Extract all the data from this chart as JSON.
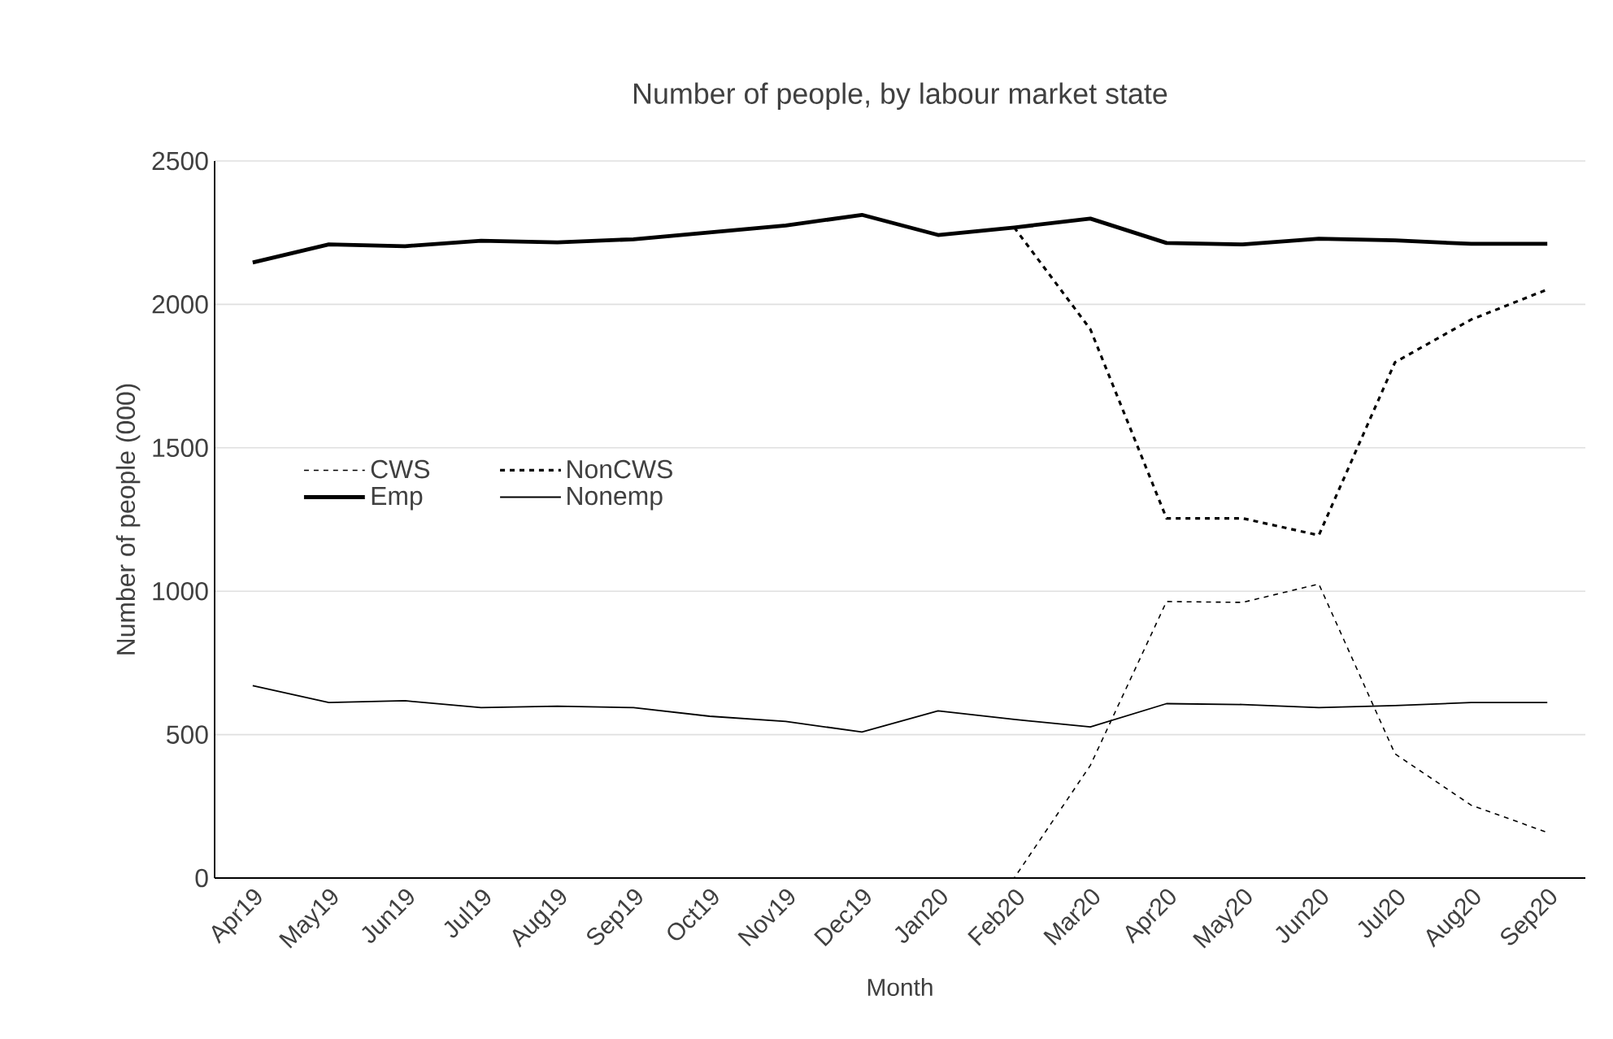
{
  "chart_data": {
    "type": "line",
    "title": "Number of people, by labour market state",
    "xlabel": "Month",
    "ylabel": "Number of people (000)",
    "categories": [
      "Apr19",
      "May19",
      "Jun19",
      "Jul19",
      "Aug19",
      "Sep19",
      "Oct19",
      "Nov19",
      "Dec19",
      "Jan20",
      "Feb20",
      "Mar20",
      "Apr20",
      "May20",
      "Jun20",
      "Jul20",
      "Aug20",
      "Sep20"
    ],
    "series": [
      {
        "name": "CWS",
        "color": "#000000",
        "line_style": "dashed",
        "values": [
          0,
          0,
          0,
          0,
          0,
          0,
          0,
          0,
          0,
          0,
          0,
          393,
          964,
          961,
          1025,
          433,
          254,
          159
        ]
      },
      {
        "name": "NonCWS",
        "color": "#000000",
        "line_style": "dashed",
        "values": [
          null,
          null,
          null,
          null,
          null,
          null,
          null,
          null,
          null,
          null,
          2268,
          1913,
          1254,
          1254,
          1195,
          1798,
          1947,
          2052
        ]
      },
      {
        "name": "Emp",
        "color": "#000000",
        "line_style": "solid",
        "values": [
          2146,
          2209,
          2203,
          2222,
          2216,
          2227,
          2251,
          2275,
          2312,
          2242,
          2268,
          2299,
          2214,
          2209,
          2229,
          2223,
          2211,
          2211
        ]
      },
      {
        "name": "Nonemp",
        "color": "#000000",
        "line_style": "solid",
        "values": [
          671,
          612,
          618,
          594,
          599,
          594,
          564,
          546,
          509,
          583,
          553,
          527,
          608,
          605,
          594,
          601,
          612,
          612
        ]
      }
    ],
    "ylim": [
      0,
      2500
    ],
    "yticks": [
      0,
      500,
      1000,
      1500,
      2000,
      2500
    ],
    "grid": "y",
    "legend": "left",
    "marker": "none"
  }
}
